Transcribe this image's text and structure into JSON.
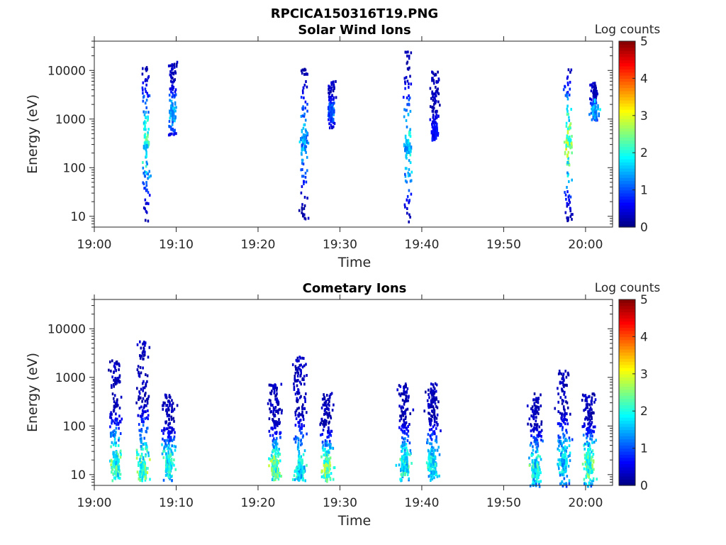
{
  "figure_title": "RPCICA150316T19.PNG",
  "chart_data": [
    {
      "type": "heatmap",
      "title": "Solar Wind Ions",
      "xlabel": "Time",
      "ylabel": "Energy (eV)",
      "yscale": "log",
      "ylim": [
        6,
        40000
      ],
      "xlim": [
        "19:00",
        "20:03"
      ],
      "xticks": [
        "19:00",
        "19:10",
        "19:20",
        "19:30",
        "19:40",
        "19:50",
        "20:00"
      ],
      "yticks": [
        "10",
        "100",
        "1000",
        "10000"
      ],
      "colorbar": {
        "label": "Log counts",
        "range": [
          0,
          5
        ],
        "ticks": [
          "0",
          "1",
          "2",
          "3",
          "4",
          "5"
        ],
        "colormap": "jet"
      },
      "grid": false,
      "bursts": [
        {
          "t_center_min": 6.2,
          "peak_energy_eV": 350,
          "peak_log_counts": 2.5,
          "energy_range_eV": [
            8,
            14000
          ]
        },
        {
          "t_center_min": 9.5,
          "peak_energy_eV": 1500,
          "peak_log_counts": 1.8,
          "energy_range_eV": [
            500,
            16000
          ]
        },
        {
          "t_center_min": 25.5,
          "peak_energy_eV": 400,
          "peak_log_counts": 1.7,
          "energy_range_eV": [
            8,
            14000
          ]
        },
        {
          "t_center_min": 28.8,
          "peak_energy_eV": 1500,
          "peak_log_counts": 1.3,
          "energy_range_eV": [
            700,
            7000
          ]
        },
        {
          "t_center_min": 38.2,
          "peak_energy_eV": 300,
          "peak_log_counts": 2.1,
          "energy_range_eV": [
            8,
            26000
          ]
        },
        {
          "t_center_min": 41.5,
          "peak_energy_eV": 600,
          "peak_log_counts": 0.8,
          "energy_range_eV": [
            400,
            10000
          ]
        },
        {
          "t_center_min": 57.8,
          "peak_energy_eV": 350,
          "peak_log_counts": 3.0,
          "energy_range_eV": [
            8,
            12000
          ]
        },
        {
          "t_center_min": 61.0,
          "peak_energy_eV": 1500,
          "peak_log_counts": 1.8,
          "energy_range_eV": [
            1000,
            6000
          ]
        }
      ]
    },
    {
      "type": "heatmap",
      "title": "Cometary Ions",
      "xlabel": "Time",
      "ylabel": "Energy (eV)",
      "yscale": "log",
      "ylim": [
        6,
        40000
      ],
      "xlim": [
        "19:00",
        "20:03"
      ],
      "xticks": [
        "19:00",
        "19:10",
        "19:20",
        "19:30",
        "19:40",
        "19:50",
        "20:00"
      ],
      "yticks": [
        "10",
        "100",
        "1000",
        "10000"
      ],
      "colorbar": {
        "label": "Log counts",
        "range": [
          0,
          5
        ],
        "ticks": [
          "0",
          "1",
          "2",
          "3",
          "4",
          "5"
        ],
        "colormap": "jet"
      },
      "grid": false,
      "bursts": [
        {
          "t_center_min": 2.5,
          "peak_energy_eV": 18,
          "peak_log_counts": 2.6,
          "energy_range_eV": [
            8,
            2500
          ]
        },
        {
          "t_center_min": 5.8,
          "peak_energy_eV": 15,
          "peak_log_counts": 2.7,
          "energy_range_eV": [
            8,
            6000
          ]
        },
        {
          "t_center_min": 9.0,
          "peak_energy_eV": 18,
          "peak_log_counts": 2.5,
          "energy_range_eV": [
            8,
            500
          ]
        },
        {
          "t_center_min": 22.0,
          "peak_energy_eV": 15,
          "peak_log_counts": 2.9,
          "energy_range_eV": [
            8,
            800
          ]
        },
        {
          "t_center_min": 25.0,
          "peak_energy_eV": 15,
          "peak_log_counts": 2.2,
          "energy_range_eV": [
            8,
            2800
          ]
        },
        {
          "t_center_min": 28.3,
          "peak_energy_eV": 15,
          "peak_log_counts": 3.0,
          "energy_range_eV": [
            8,
            500
          ]
        },
        {
          "t_center_min": 37.8,
          "peak_energy_eV": 18,
          "peak_log_counts": 2.4,
          "energy_range_eV": [
            8,
            800
          ]
        },
        {
          "t_center_min": 41.2,
          "peak_energy_eV": 18,
          "peak_log_counts": 2.3,
          "energy_range_eV": [
            8,
            800
          ]
        },
        {
          "t_center_min": 53.8,
          "peak_energy_eV": 15,
          "peak_log_counts": 2.4,
          "energy_range_eV": [
            6,
            500
          ]
        },
        {
          "t_center_min": 57.2,
          "peak_energy_eV": 20,
          "peak_log_counts": 2.1,
          "energy_range_eV": [
            6,
            1500
          ]
        },
        {
          "t_center_min": 60.3,
          "peak_energy_eV": 18,
          "peak_log_counts": 2.9,
          "energy_range_eV": [
            6,
            500
          ]
        }
      ]
    }
  ]
}
